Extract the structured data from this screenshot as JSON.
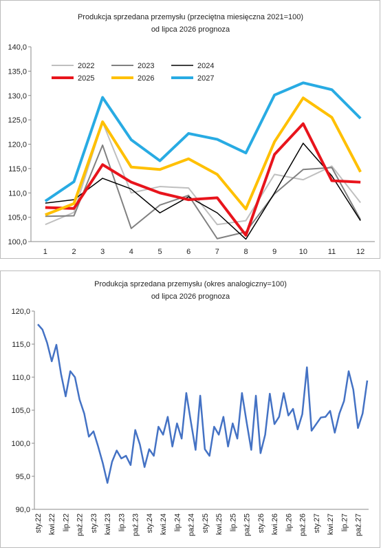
{
  "chart_data": [
    {
      "type": "line",
      "title": "Produkcja sprzedana przemysłu (przeciętna miesięczna 2021=100)",
      "subtitle": "od lipca 2026 prognoza",
      "categories": [
        "1",
        "2",
        "3",
        "4",
        "5",
        "6",
        "7",
        "8",
        "9",
        "10",
        "11",
        "12"
      ],
      "ylim": [
        100,
        140
      ],
      "yticks": [
        {
          "value": 100,
          "label": "100,0"
        },
        {
          "value": 105,
          "label": "105,0"
        },
        {
          "value": 110,
          "label": "110,0"
        },
        {
          "value": 115,
          "label": "115,0"
        },
        {
          "value": 120,
          "label": "120,0"
        },
        {
          "value": 125,
          "label": "125,0"
        },
        {
          "value": 130,
          "label": "130,0"
        },
        {
          "value": 135,
          "label": "135,0"
        },
        {
          "value": 140,
          "label": "140,0"
        }
      ],
      "legend": "top-left",
      "series": [
        {
          "name": "2022",
          "color": "#bfbfbf",
          "width": 2,
          "values": [
            103.5,
            106,
            124.5,
            110,
            111.3,
            111,
            103.5,
            104.3,
            113.8,
            112.7,
            115.5,
            108
          ]
        },
        {
          "name": "2023",
          "color": "#808080",
          "width": 2,
          "values": [
            105.2,
            105.3,
            119.8,
            102.7,
            107.5,
            109.5,
            100.6,
            102,
            109.8,
            114.8,
            115.2,
            104.5
          ]
        },
        {
          "name": "2024",
          "color": "#000000",
          "width": 1.5,
          "values": [
            107.9,
            108.6,
            113,
            110.8,
            105.9,
            109.2,
            105.9,
            100.5,
            110,
            120.2,
            113.5,
            104.3
          ]
        },
        {
          "name": "2025",
          "color": "#e8141c",
          "width": 4,
          "values": [
            107,
            106.8,
            115.8,
            112.2,
            110,
            108.6,
            109,
            101.3,
            117.9,
            124.2,
            112.5,
            112.2
          ]
        },
        {
          "name": "2026",
          "color": "#ffc000",
          "width": 4,
          "values": [
            105.5,
            107.8,
            124.6,
            115.3,
            114.8,
            117,
            113.8,
            106.7,
            120.5,
            129.5,
            125.5,
            114.3
          ]
        },
        {
          "name": "2027",
          "color": "#28abe3",
          "width": 4,
          "values": [
            108.3,
            112.3,
            129.6,
            120.9,
            116.6,
            122.2,
            121,
            118.2,
            130.1,
            132.6,
            131.2,
            125.3
          ]
        }
      ]
    },
    {
      "type": "line",
      "title": "Produkcja sprzedana przemysłu (okres analogiczny=100)",
      "subtitle": "od lipca 2026 prognoza",
      "categories": [
        "sty.22",
        null,
        null,
        "kwi.22",
        null,
        null,
        "lip.22",
        null,
        null,
        "paź.22",
        null,
        null,
        "sty.23",
        null,
        null,
        "kwi.23",
        null,
        null,
        "lip.23",
        null,
        null,
        "paź.23",
        null,
        null,
        "sty.24",
        null,
        null,
        "kwi.24",
        null,
        null,
        "lip.24",
        null,
        null,
        "paź.24",
        null,
        null,
        "sty.25",
        null,
        null,
        "kwi.25",
        null,
        null,
        "lip.25",
        null,
        null,
        "paź.25",
        null,
        null,
        "sty.26",
        null,
        null,
        "kwi.26",
        null,
        null,
        "lip.26",
        null,
        null,
        "paź.26",
        null,
        null,
        "sty.27",
        null,
        null,
        "kwi.27",
        null,
        null,
        "lip.27",
        null,
        null,
        "paź.27",
        null,
        null
      ],
      "ylim": [
        90,
        120
      ],
      "yticks": [
        {
          "value": 90,
          "label": "90,0"
        },
        {
          "value": 95,
          "label": "95,0"
        },
        {
          "value": 100,
          "label": "100,0"
        },
        {
          "value": 105,
          "label": "105,0"
        },
        {
          "value": 110,
          "label": "110,0"
        },
        {
          "value": 115,
          "label": "115,0"
        },
        {
          "value": 120,
          "label": "120,0"
        }
      ],
      "series": [
        {
          "color": "#4472c4",
          "width": 2.5,
          "values": [
            118,
            117.2,
            115.2,
            112.4,
            114.9,
            110.5,
            107.1,
            110.9,
            110,
            106.6,
            104.5,
            101,
            101.8,
            99.5,
            97,
            94,
            97.2,
            98.9,
            97.7,
            98.1,
            96.7,
            102,
            99.8,
            96.4,
            99.1,
            98.1,
            102.5,
            101.3,
            104,
            99.5,
            103,
            100.7,
            107.6,
            103.2,
            99,
            107.2,
            99.1,
            98.1,
            102.5,
            101.3,
            104,
            99.5,
            103,
            100.7,
            107.6,
            103.2,
            99,
            107.2,
            98.5,
            101.3,
            107.5,
            102.9,
            104,
            107.6,
            104.2,
            105.2,
            102.1,
            104.4,
            111.5,
            101.9,
            102.9,
            103.9,
            104,
            104.9,
            101.6,
            104.5,
            106.4,
            110.9,
            108.1,
            102.3,
            104.5,
            109.5
          ]
        }
      ]
    }
  ]
}
